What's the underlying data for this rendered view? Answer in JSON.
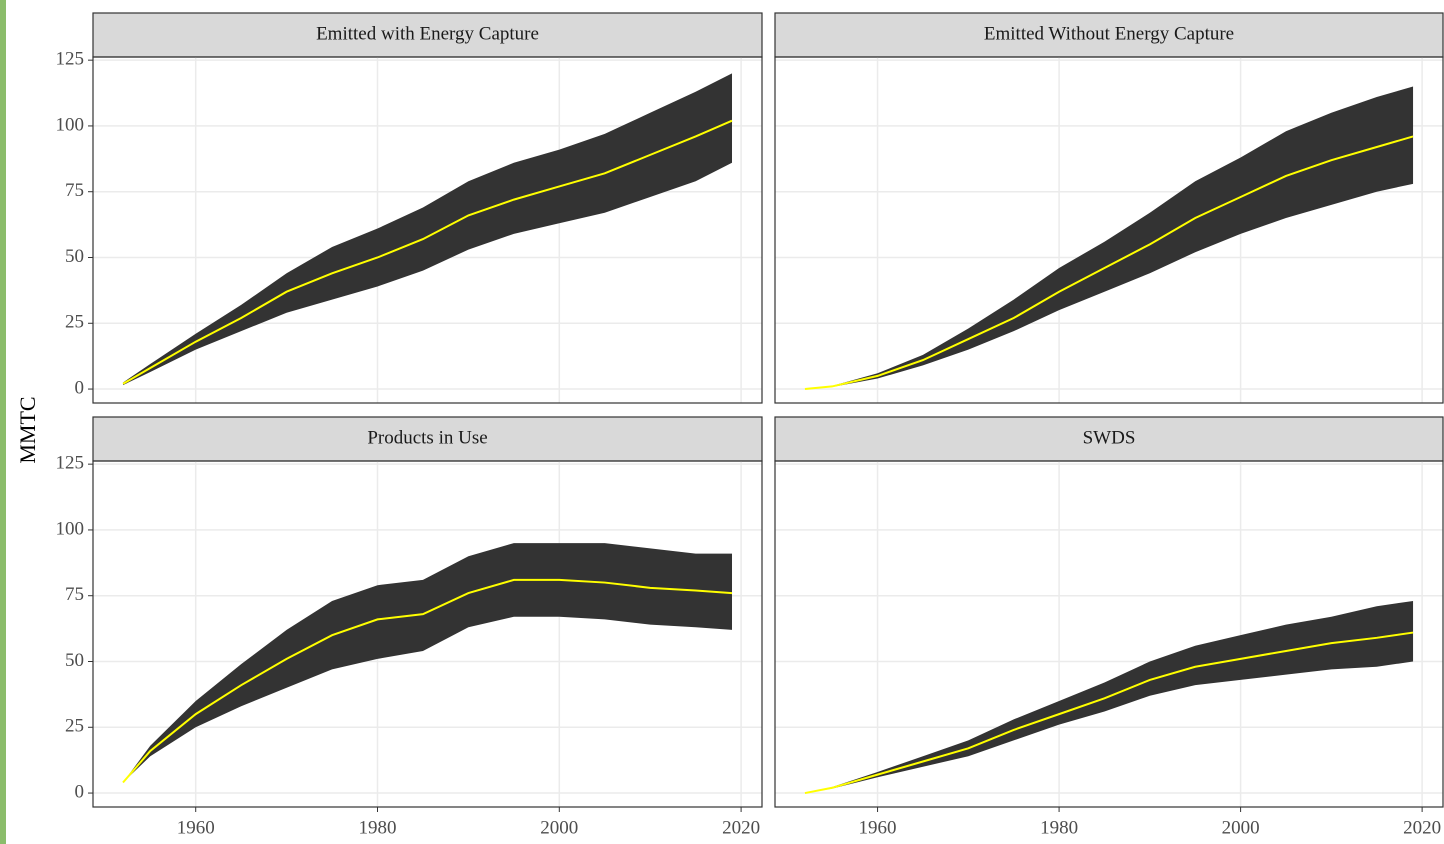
{
  "ylabel": "MMTC",
  "chart_data": [
    {
      "type": "band",
      "title": "Emitted with Energy Capture",
      "color": "#ffff00",
      "band_color": "#333333",
      "grid": true,
      "x": [
        1952,
        1955,
        1960,
        1965,
        1970,
        1975,
        1980,
        1985,
        1990,
        1995,
        2000,
        2005,
        2010,
        2015,
        2019
      ],
      "values": [
        2,
        8,
        18,
        27,
        37,
        44,
        50,
        57,
        66,
        72,
        77,
        82,
        89,
        96,
        102
      ],
      "lower": [
        1.5,
        6.5,
        15,
        22,
        29,
        34,
        39,
        45,
        53,
        59,
        63,
        67,
        73,
        79,
        86
      ],
      "upper": [
        2.5,
        9.5,
        21,
        32,
        44,
        54,
        61,
        69,
        79,
        86,
        91,
        97,
        105,
        113,
        120
      ],
      "xlim": [
        1948.7,
        2022.3
      ],
      "xticks": [
        1960,
        1980,
        2000,
        2020
      ],
      "ylim": [
        -5.3,
        126.2
      ],
      "yticks": [
        0,
        25,
        50,
        75,
        100,
        125
      ]
    },
    {
      "type": "band",
      "title": "Emitted Without Energy Capture",
      "color": "#ffff00",
      "band_color": "#333333",
      "grid": true,
      "x": [
        1952,
        1955,
        1960,
        1965,
        1970,
        1975,
        1980,
        1985,
        1990,
        1995,
        2000,
        2005,
        2010,
        2015,
        2019
      ],
      "values": [
        0,
        1,
        5,
        11,
        19,
        27,
        37,
        46,
        55,
        65,
        73,
        81,
        87,
        92,
        96
      ],
      "lower": [
        0,
        0.8,
        4,
        9,
        15,
        22,
        30,
        37,
        44,
        52,
        59,
        65,
        70,
        75,
        78
      ],
      "upper": [
        0,
        1.2,
        6,
        13,
        23,
        34,
        46,
        56,
        67,
        79,
        88,
        98,
        105,
        111,
        115
      ],
      "xlim": [
        1948.7,
        2022.3
      ],
      "xticks": [
        1960,
        1980,
        2000,
        2020
      ],
      "ylim": [
        -5.3,
        126.2
      ],
      "yticks": [
        0,
        25,
        50,
        75,
        100,
        125
      ]
    },
    {
      "type": "band",
      "title": "Products in Use",
      "color": "#ffff00",
      "band_color": "#333333",
      "grid": true,
      "x": [
        1952,
        1955,
        1960,
        1965,
        1970,
        1975,
        1980,
        1985,
        1990,
        1995,
        2000,
        2005,
        2010,
        2015,
        2019
      ],
      "values": [
        4,
        16,
        30,
        41,
        51,
        60,
        66,
        68,
        76,
        81,
        81,
        80,
        78,
        77,
        76
      ],
      "lower": [
        4,
        14,
        25,
        33,
        40,
        47,
        51,
        54,
        63,
        67,
        67,
        66,
        64,
        63,
        62
      ],
      "upper": [
        4,
        18,
        35,
        49,
        62,
        73,
        79,
        81,
        90,
        95,
        95,
        95,
        93,
        91,
        91
      ],
      "xlim": [
        1948.7,
        2022.3
      ],
      "xticks": [
        1960,
        1980,
        2000,
        2020
      ],
      "ylim": [
        -5.3,
        126.2
      ],
      "yticks": [
        0,
        25,
        50,
        75,
        100,
        125
      ]
    },
    {
      "type": "band",
      "title": "SWDS",
      "color": "#ffff00",
      "band_color": "#333333",
      "grid": true,
      "x": [
        1952,
        1955,
        1960,
        1965,
        1970,
        1975,
        1980,
        1985,
        1990,
        1995,
        2000,
        2005,
        2010,
        2015,
        2019
      ],
      "values": [
        0,
        2,
        7,
        12,
        17,
        24,
        30,
        36,
        43,
        48,
        51,
        54,
        57,
        59,
        61
      ],
      "lower": [
        0,
        1.7,
        6,
        10,
        14,
        20,
        26,
        31,
        37,
        41,
        43,
        45,
        47,
        48,
        50
      ],
      "upper": [
        0,
        2.3,
        8,
        14,
        20,
        28,
        35,
        42,
        50,
        56,
        60,
        64,
        67,
        71,
        73
      ],
      "xlim": [
        1948.7,
        2022.3
      ],
      "xticks": [
        1960,
        1980,
        2000,
        2020
      ],
      "ylim": [
        -5.3,
        126.2
      ],
      "yticks": [
        0,
        25,
        50,
        75,
        100,
        125
      ]
    }
  ]
}
